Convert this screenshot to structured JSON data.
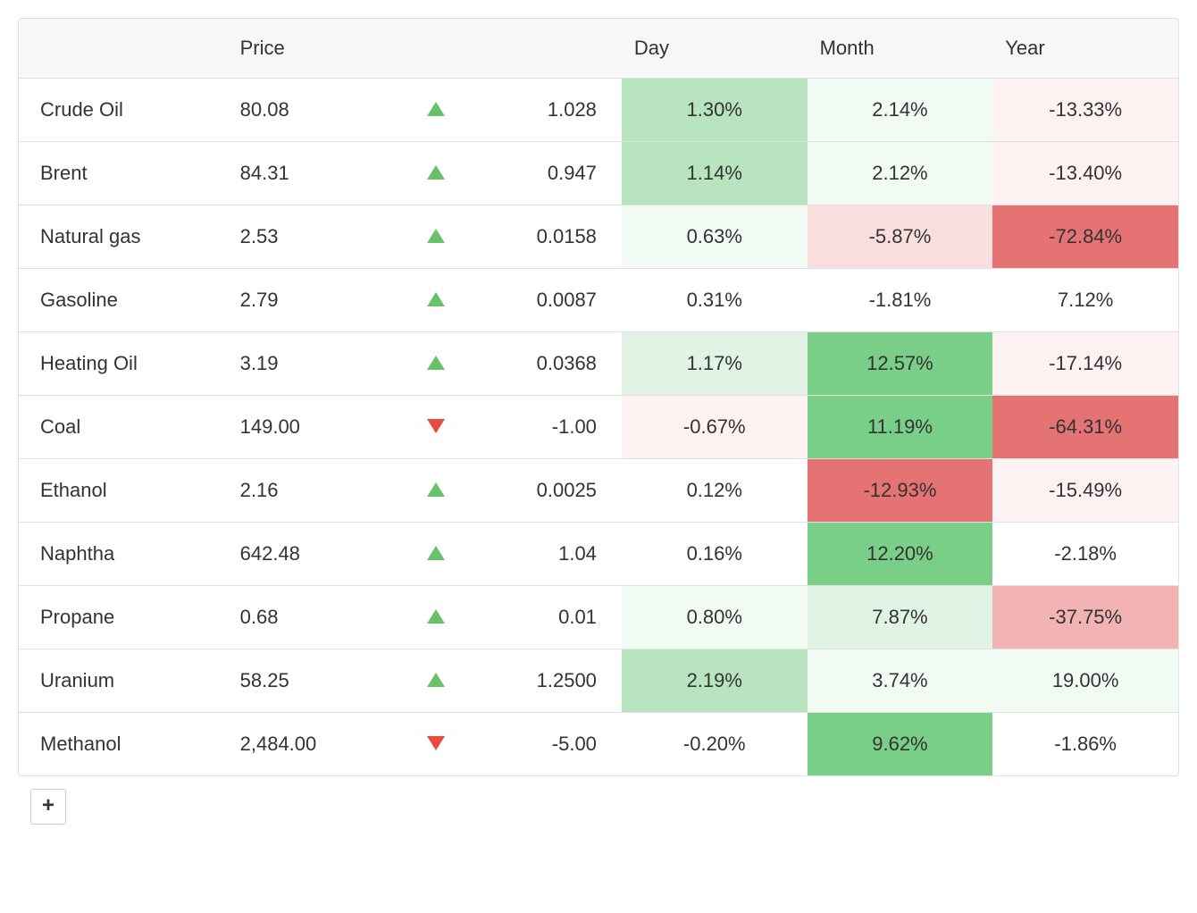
{
  "table": {
    "columns": {
      "name": "",
      "price": "Price",
      "direction": "",
      "change": "",
      "day": "Day",
      "month": "Month",
      "year": "Year"
    },
    "heatmap_colors": {
      "pos_strong": "#79cf87",
      "pos_mid": "#b7e4bf",
      "pos_light": "#e0f3e4",
      "pos_faint": "#f1faf3",
      "neg_strong": "#e57373",
      "neg_mid": "#f1b3b3",
      "neg_light": "#f9dede",
      "neg_faint": "#fdf1f1",
      "none": "#ffffff"
    },
    "rows": [
      {
        "name": "Crude Oil",
        "price": "80.08",
        "direction": "up",
        "change": "1.028",
        "day": {
          "text": "1.30%",
          "color_key": "pos_mid"
        },
        "month": {
          "text": "2.14%",
          "color_key": "pos_faint"
        },
        "year": {
          "text": "-13.33%",
          "color_key": "neg_faint"
        }
      },
      {
        "name": "Brent",
        "price": "84.31",
        "direction": "up",
        "change": "0.947",
        "day": {
          "text": "1.14%",
          "color_key": "pos_mid"
        },
        "month": {
          "text": "2.12%",
          "color_key": "pos_faint"
        },
        "year": {
          "text": "-13.40%",
          "color_key": "neg_faint"
        }
      },
      {
        "name": "Natural gas",
        "price": "2.53",
        "direction": "up",
        "change": "0.0158",
        "day": {
          "text": "0.63%",
          "color_key": "pos_faint"
        },
        "month": {
          "text": "-5.87%",
          "color_key": "neg_light"
        },
        "year": {
          "text": "-72.84%",
          "color_key": "neg_strong"
        }
      },
      {
        "name": "Gasoline",
        "price": "2.79",
        "direction": "up",
        "change": "0.0087",
        "day": {
          "text": "0.31%",
          "color_key": "none"
        },
        "month": {
          "text": "-1.81%",
          "color_key": "none"
        },
        "year": {
          "text": "7.12%",
          "color_key": "none"
        }
      },
      {
        "name": "Heating Oil",
        "price": "3.19",
        "direction": "up",
        "change": "0.0368",
        "day": {
          "text": "1.17%",
          "color_key": "pos_light"
        },
        "month": {
          "text": "12.57%",
          "color_key": "pos_strong"
        },
        "year": {
          "text": "-17.14%",
          "color_key": "neg_faint"
        }
      },
      {
        "name": "Coal",
        "price": "149.00",
        "direction": "down",
        "change": "-1.00",
        "day": {
          "text": "-0.67%",
          "color_key": "neg_faint"
        },
        "month": {
          "text": "11.19%",
          "color_key": "pos_strong"
        },
        "year": {
          "text": "-64.31%",
          "color_key": "neg_strong"
        }
      },
      {
        "name": "Ethanol",
        "price": "2.16",
        "direction": "up",
        "change": "0.0025",
        "day": {
          "text": "0.12%",
          "color_key": "none"
        },
        "month": {
          "text": "-12.93%",
          "color_key": "neg_strong"
        },
        "year": {
          "text": "-15.49%",
          "color_key": "neg_faint"
        }
      },
      {
        "name": "Naphtha",
        "price": "642.48",
        "direction": "up",
        "change": "1.04",
        "day": {
          "text": "0.16%",
          "color_key": "none"
        },
        "month": {
          "text": "12.20%",
          "color_key": "pos_strong"
        },
        "year": {
          "text": "-2.18%",
          "color_key": "none"
        }
      },
      {
        "name": "Propane",
        "price": "0.68",
        "direction": "up",
        "change": "0.01",
        "day": {
          "text": "0.80%",
          "color_key": "pos_faint"
        },
        "month": {
          "text": "7.87%",
          "color_key": "pos_light"
        },
        "year": {
          "text": "-37.75%",
          "color_key": "neg_mid"
        }
      },
      {
        "name": "Uranium",
        "price": "58.25",
        "direction": "up",
        "change": "1.2500",
        "day": {
          "text": "2.19%",
          "color_key": "pos_mid"
        },
        "month": {
          "text": "3.74%",
          "color_key": "pos_faint"
        },
        "year": {
          "text": "19.00%",
          "color_key": "pos_faint"
        }
      },
      {
        "name": "Methanol",
        "price": "2,484.00",
        "direction": "down",
        "change": "-5.00",
        "day": {
          "text": "-0.20%",
          "color_key": "none"
        },
        "month": {
          "text": "9.62%",
          "color_key": "pos_strong"
        },
        "year": {
          "text": "-1.86%",
          "color_key": "none"
        }
      }
    ],
    "add_button_label": "+"
  }
}
